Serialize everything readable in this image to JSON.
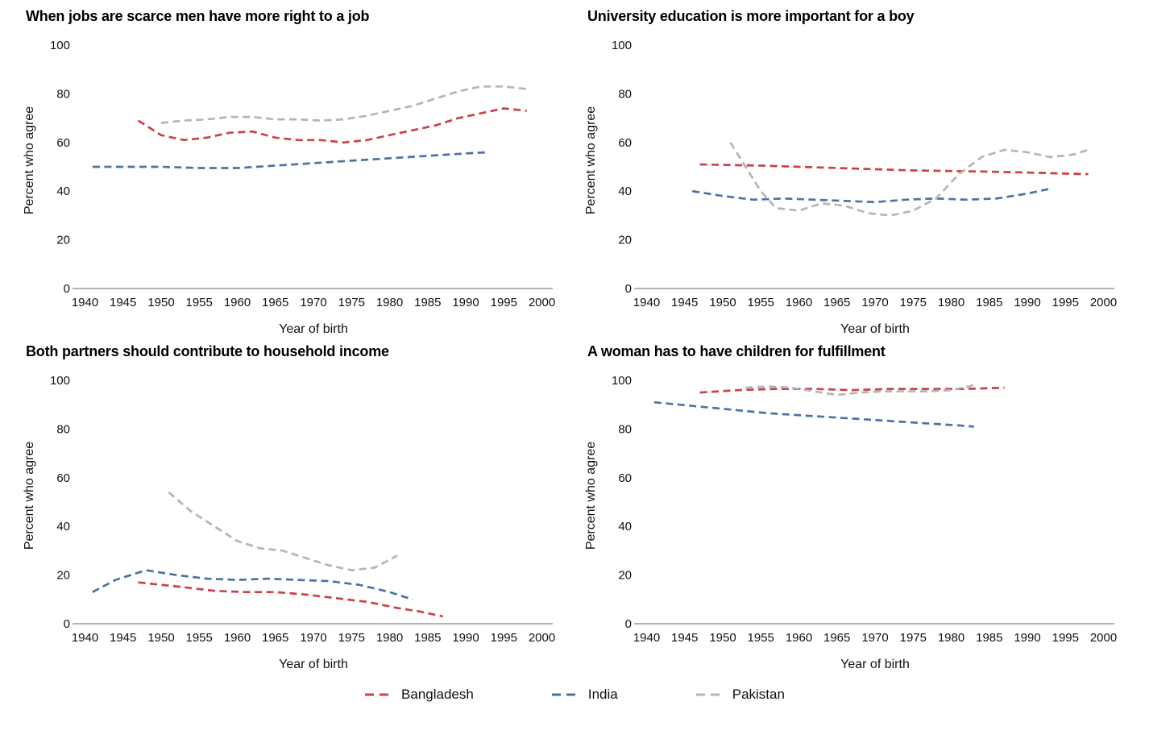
{
  "page": {
    "background": "#ffffff"
  },
  "legend": {
    "items": [
      {
        "label": "Bangladesh",
        "color": "#ca4148"
      },
      {
        "label": "India",
        "color": "#4a73a6"
      },
      {
        "label": "Pakistan",
        "color": "#b5b5b5"
      }
    ]
  },
  "chart_data": [
    {
      "type": "line",
      "title": "When jobs are scarce men have more right to a job",
      "xlabel": "Year of birth",
      "ylabel": "Percent who agree",
      "line_style": "dashed",
      "grid": false,
      "xlim": [
        1939,
        2001
      ],
      "ylim": [
        0,
        100
      ],
      "xticks": [
        1940,
        1945,
        1950,
        1955,
        1960,
        1965,
        1970,
        1975,
        1980,
        1985,
        1990,
        1995,
        2000
      ],
      "yticks": [
        0,
        20,
        40,
        60,
        80,
        100
      ],
      "series": [
        {
          "name": "Bangladesh",
          "color": "#ca4148",
          "x": [
            1947,
            1950,
            1953,
            1956,
            1959,
            1962,
            1965,
            1968,
            1971,
            1974,
            1977,
            1980,
            1983,
            1986,
            1989,
            1992,
            1995,
            1998
          ],
          "y": [
            69,
            63,
            61,
            62,
            64,
            64.5,
            62,
            61,
            61,
            60,
            61,
            63,
            65,
            67,
            70,
            72,
            74,
            73
          ]
        },
        {
          "name": "India",
          "color": "#4a73a6",
          "x": [
            1941,
            1945,
            1950,
            1955,
            1960,
            1965,
            1970,
            1975,
            1980,
            1985,
            1990,
            1993
          ],
          "y": [
            50,
            50,
            50,
            49.5,
            49.5,
            50.5,
            51.5,
            52.5,
            53.5,
            54.5,
            55.5,
            56
          ]
        },
        {
          "name": "Pakistan",
          "color": "#b5b5b5",
          "x": [
            1950,
            1953,
            1956,
            1959,
            1962,
            1965,
            1968,
            1971,
            1974,
            1977,
            1980,
            1983,
            1986,
            1989,
            1992,
            1995,
            1998
          ],
          "y": [
            68,
            69,
            69.5,
            70.5,
            70.5,
            69.5,
            69.5,
            69,
            69.5,
            71,
            73,
            75,
            78,
            81,
            83,
            83,
            82
          ]
        }
      ]
    },
    {
      "type": "line",
      "title": "University education is more important for a boy",
      "xlabel": "Year of birth",
      "ylabel": "Percent who agree",
      "line_style": "dashed",
      "grid": false,
      "xlim": [
        1939,
        2001
      ],
      "ylim": [
        0,
        100
      ],
      "xticks": [
        1940,
        1945,
        1950,
        1955,
        1960,
        1965,
        1970,
        1975,
        1980,
        1985,
        1990,
        1995,
        2000
      ],
      "yticks": [
        0,
        20,
        40,
        60,
        80,
        100
      ],
      "series": [
        {
          "name": "Bangladesh",
          "color": "#ca4148",
          "x": [
            1947,
            1955,
            1965,
            1975,
            1985,
            1992,
            1998
          ],
          "y": [
            51,
            50.5,
            49.5,
            48.5,
            48,
            47.5,
            47
          ]
        },
        {
          "name": "India",
          "color": "#4a73a6",
          "x": [
            1946,
            1950,
            1954,
            1958,
            1962,
            1966,
            1970,
            1974,
            1978,
            1982,
            1986,
            1990,
            1993
          ],
          "y": [
            40,
            38,
            36.5,
            37,
            36.5,
            36,
            35.5,
            36.5,
            37,
            36.5,
            37,
            39,
            41
          ]
        },
        {
          "name": "Pakistan",
          "color": "#b5b5b5",
          "x": [
            1951,
            1953,
            1955,
            1957,
            1960,
            1963,
            1966,
            1969,
            1972,
            1975,
            1978,
            1981,
            1984,
            1987,
            1990,
            1993,
            1996,
            1998
          ],
          "y": [
            60,
            50,
            40,
            33,
            32,
            35,
            34,
            31,
            30,
            32,
            37,
            47,
            54,
            57,
            56,
            54,
            55,
            57
          ]
        }
      ]
    },
    {
      "type": "line",
      "title": "Both partners should contribute to household income",
      "xlabel": "Year of birth",
      "ylabel": "Percent who agree",
      "line_style": "dashed",
      "grid": false,
      "xlim": [
        1939,
        2001
      ],
      "ylim": [
        0,
        100
      ],
      "xticks": [
        1940,
        1945,
        1950,
        1955,
        1960,
        1965,
        1970,
        1975,
        1980,
        1985,
        1990,
        1995,
        2000
      ],
      "yticks": [
        0,
        20,
        40,
        60,
        80,
        100
      ],
      "series": [
        {
          "name": "Bangladesh",
          "color": "#ca4148",
          "x": [
            1947,
            1950,
            1953,
            1957,
            1961,
            1965,
            1969,
            1973,
            1977,
            1981,
            1984,
            1987
          ],
          "y": [
            17,
            16,
            15,
            13.5,
            13,
            13,
            12,
            10.5,
            9,
            6.5,
            5,
            3
          ]
        },
        {
          "name": "India",
          "color": "#4a73a6",
          "x": [
            1941,
            1944,
            1948,
            1952,
            1956,
            1960,
            1964,
            1968,
            1972,
            1976,
            1980,
            1983
          ],
          "y": [
            13,
            18,
            22,
            20,
            18.5,
            18,
            18.5,
            18,
            17.5,
            16,
            13,
            10
          ]
        },
        {
          "name": "Pakistan",
          "color": "#b5b5b5",
          "x": [
            1951,
            1954,
            1957,
            1960,
            1963,
            1966,
            1969,
            1972,
            1975,
            1978,
            1981
          ],
          "y": [
            54,
            46,
            40,
            34,
            31,
            30,
            27,
            24,
            22,
            23,
            28
          ]
        }
      ]
    },
    {
      "type": "line",
      "title": "A woman has to have children for fulfillment",
      "xlabel": "Year of birth",
      "ylabel": "Percent who agree",
      "line_style": "dashed",
      "grid": false,
      "xlim": [
        1939,
        2001
      ],
      "ylim": [
        0,
        100
      ],
      "xticks": [
        1940,
        1945,
        1950,
        1955,
        1960,
        1965,
        1970,
        1975,
        1980,
        1985,
        1990,
        1995,
        2000
      ],
      "yticks": [
        0,
        20,
        40,
        60,
        80,
        100
      ],
      "series": [
        {
          "name": "Bangladesh",
          "color": "#ca4148",
          "x": [
            1947,
            1952,
            1957,
            1962,
            1967,
            1972,
            1977,
            1982,
            1987
          ],
          "y": [
            95,
            96,
            96.5,
            96.5,
            96,
            96.5,
            96.5,
            96.5,
            97
          ]
        },
        {
          "name": "India",
          "color": "#4a73a6",
          "x": [
            1941,
            1946,
            1951,
            1956,
            1961,
            1966,
            1971,
            1976,
            1981,
            1983
          ],
          "y": [
            91,
            89.5,
            88,
            86.5,
            85.5,
            84.5,
            83.5,
            82.5,
            81.5,
            81
          ]
        },
        {
          "name": "Pakistan",
          "color": "#b5b5b5",
          "x": [
            1953,
            1956,
            1959,
            1962,
            1965,
            1968,
            1971,
            1974,
            1977,
            1980,
            1983
          ],
          "y": [
            97,
            97.5,
            97,
            95.5,
            94,
            95,
            95.5,
            95.5,
            95.5,
            96,
            98
          ]
        }
      ]
    }
  ]
}
